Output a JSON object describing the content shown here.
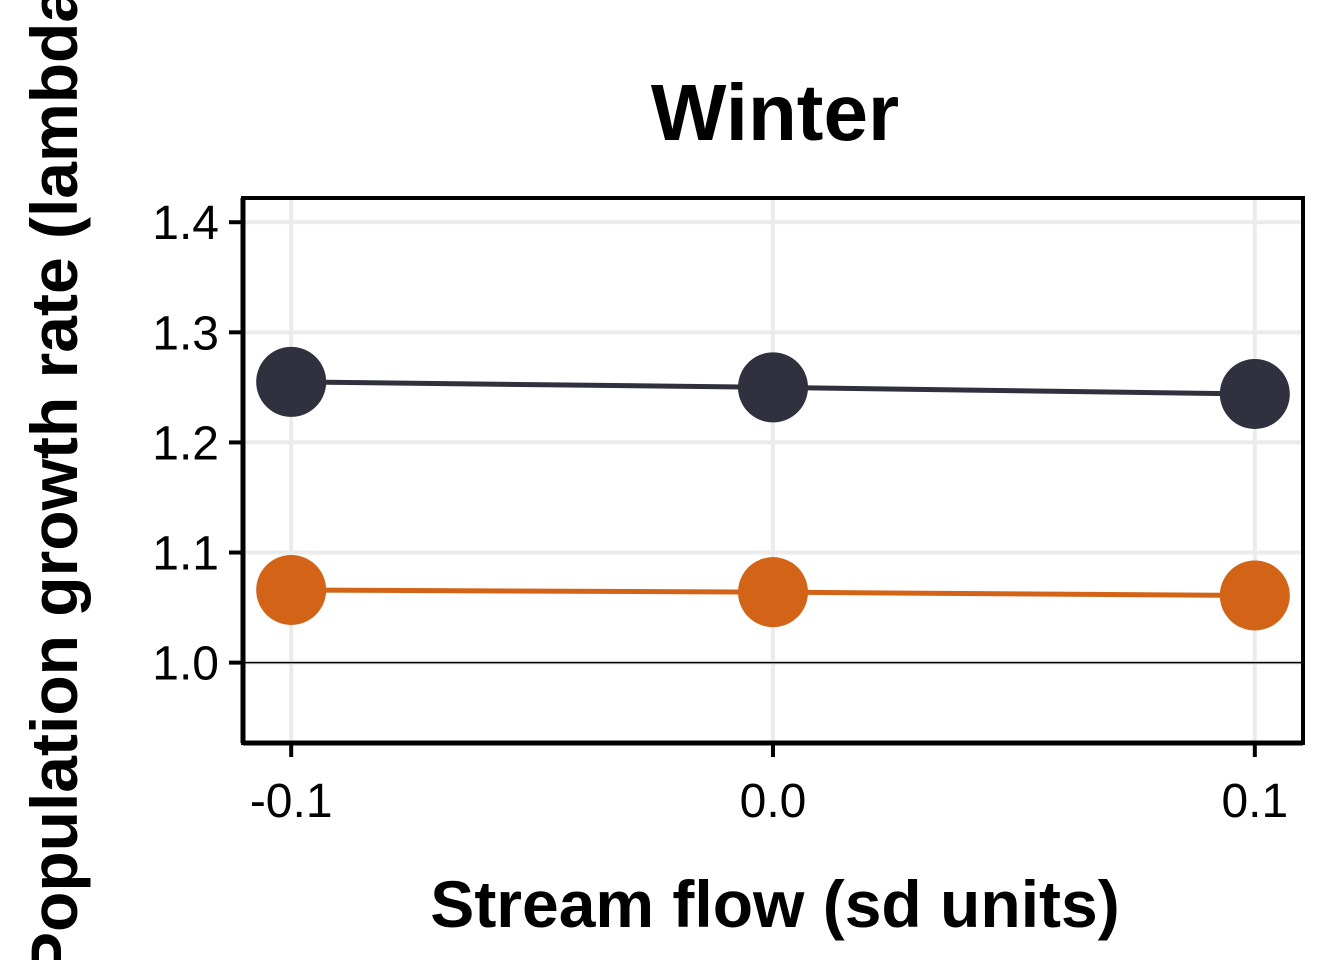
{
  "chart_data": {
    "type": "line",
    "title": "Winter",
    "xlabel": "Stream flow (sd units)",
    "ylabel": "Population growth rate (lambda)",
    "x": [
      -0.1,
      0.0,
      0.1
    ],
    "x_tick_labels": [
      "-0.1",
      "0.0",
      "0.1"
    ],
    "y_ticks": [
      1.0,
      1.1,
      1.2,
      1.3,
      1.4
    ],
    "y_tick_labels": [
      "1.0",
      "1.1",
      "1.2",
      "1.3",
      "1.4"
    ],
    "xlim": [
      -0.11,
      0.11
    ],
    "ylim": [
      0.927,
      1.422
    ],
    "reference_line_y": 1.0,
    "grid": true,
    "legend": "none",
    "series": [
      {
        "color": "#30303f",
        "values": [
          1.255,
          1.25,
          1.244
        ]
      },
      {
        "color": "#d36417",
        "values": [
          1.066,
          1.064,
          1.061
        ]
      }
    ]
  }
}
